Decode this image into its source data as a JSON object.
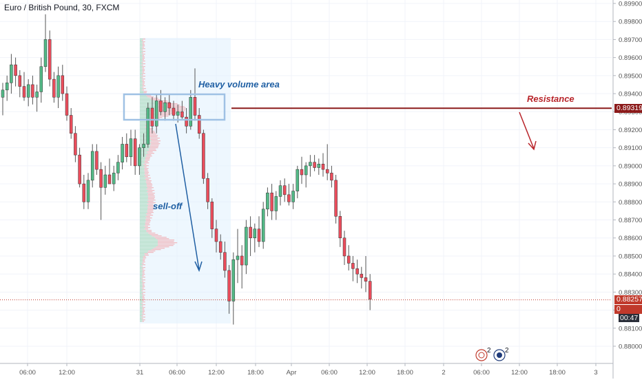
{
  "symbol_title": "Euro / British Pound, 30, FXCM",
  "colors": {
    "up": "#53b987",
    "down": "#eb4d5c",
    "wick": "#555555",
    "resistance": "#8b1a1a",
    "annotation_blue": "#1f5fa3",
    "annotation_red": "#b8242a",
    "box_stroke": "#9fc1e4",
    "range_fill": "#e3f2fd",
    "price_line": "#c0392b",
    "grid": "#f0f3fa",
    "axis_text": "#555555"
  },
  "price_tags": {
    "resistance": "0.89319",
    "last": "0.88257",
    "countdown_prefix": "0",
    "countdown": "00:47"
  },
  "annotations": {
    "heavy_volume": "Heavy volume area",
    "resistance": "Resistance",
    "selloff": "sell-off"
  },
  "bottom_icons": {
    "badge_1": "2",
    "badge_2": "2"
  },
  "chart_data": {
    "type": "candlestick",
    "ylim": [
      0.8792,
      0.8992
    ],
    "y_ticks": [
      "0.88000",
      "0.88100",
      "0.88200",
      "0.88300",
      "0.88400",
      "0.88500",
      "0.88600",
      "0.88700",
      "0.88800",
      "0.88900",
      "0.89000",
      "0.89100",
      "0.89200",
      "0.89300",
      "0.89400",
      "0.89500",
      "0.89600",
      "0.89700",
      "0.89800",
      "0.89900"
    ],
    "x_ticks": [
      "06:00",
      "12:00",
      "31",
      "06:00",
      "12:00",
      "18:00",
      "Apr",
      "06:00",
      "12:00",
      "18:00",
      "2",
      "06:00",
      "12:00",
      "18:00",
      "3"
    ],
    "resistance_level": 0.89319,
    "last_price": 0.88257,
    "candles": [
      {
        "o": 0.8938,
        "h": 0.8946,
        "l": 0.8928,
        "c": 0.8942
      },
      {
        "o": 0.8942,
        "h": 0.895,
        "l": 0.8936,
        "c": 0.8946
      },
      {
        "o": 0.8946,
        "h": 0.8962,
        "l": 0.894,
        "c": 0.8956
      },
      {
        "o": 0.8956,
        "h": 0.896,
        "l": 0.8944,
        "c": 0.895
      },
      {
        "o": 0.895,
        "h": 0.8953,
        "l": 0.8938,
        "c": 0.8944
      },
      {
        "o": 0.8944,
        "h": 0.8952,
        "l": 0.8936,
        "c": 0.8938
      },
      {
        "o": 0.8938,
        "h": 0.8948,
        "l": 0.8933,
        "c": 0.8945
      },
      {
        "o": 0.8945,
        "h": 0.895,
        "l": 0.8934,
        "c": 0.8938
      },
      {
        "o": 0.8938,
        "h": 0.8945,
        "l": 0.893,
        "c": 0.8941
      },
      {
        "o": 0.8941,
        "h": 0.896,
        "l": 0.8935,
        "c": 0.8955
      },
      {
        "o": 0.8955,
        "h": 0.8984,
        "l": 0.8952,
        "c": 0.897
      },
      {
        "o": 0.897,
        "h": 0.8975,
        "l": 0.8944,
        "c": 0.8948
      },
      {
        "o": 0.8948,
        "h": 0.8952,
        "l": 0.8935,
        "c": 0.8938
      },
      {
        "o": 0.8938,
        "h": 0.8955,
        "l": 0.8932,
        "c": 0.895
      },
      {
        "o": 0.895,
        "h": 0.8956,
        "l": 0.8936,
        "c": 0.894
      },
      {
        "o": 0.894,
        "h": 0.8944,
        "l": 0.8925,
        "c": 0.8928
      },
      {
        "o": 0.8928,
        "h": 0.8932,
        "l": 0.8915,
        "c": 0.8918
      },
      {
        "o": 0.8918,
        "h": 0.8922,
        "l": 0.8902,
        "c": 0.8906
      },
      {
        "o": 0.8906,
        "h": 0.891,
        "l": 0.8888,
        "c": 0.889
      },
      {
        "o": 0.889,
        "h": 0.8895,
        "l": 0.8876,
        "c": 0.888
      },
      {
        "o": 0.888,
        "h": 0.8896,
        "l": 0.8876,
        "c": 0.8892
      },
      {
        "o": 0.8892,
        "h": 0.8912,
        "l": 0.8888,
        "c": 0.8908
      },
      {
        "o": 0.8908,
        "h": 0.8912,
        "l": 0.8895,
        "c": 0.8898
      },
      {
        "o": 0.8898,
        "h": 0.8902,
        "l": 0.887,
        "c": 0.8888
      },
      {
        "o": 0.8888,
        "h": 0.89,
        "l": 0.8884,
        "c": 0.8895
      },
      {
        "o": 0.8895,
        "h": 0.8904,
        "l": 0.889,
        "c": 0.889
      },
      {
        "o": 0.889,
        "h": 0.89,
        "l": 0.8886,
        "c": 0.8896
      },
      {
        "o": 0.8896,
        "h": 0.8906,
        "l": 0.8892,
        "c": 0.8902
      },
      {
        "o": 0.8902,
        "h": 0.8916,
        "l": 0.8898,
        "c": 0.8912
      },
      {
        "o": 0.8912,
        "h": 0.8918,
        "l": 0.8902,
        "c": 0.8905
      },
      {
        "o": 0.8905,
        "h": 0.892,
        "l": 0.89,
        "c": 0.8915
      },
      {
        "o": 0.8915,
        "h": 0.892,
        "l": 0.8895,
        "c": 0.89
      },
      {
        "o": 0.89,
        "h": 0.8912,
        "l": 0.8895,
        "c": 0.891
      },
      {
        "o": 0.891,
        "h": 0.8918,
        "l": 0.8905,
        "c": 0.8912
      },
      {
        "o": 0.8912,
        "h": 0.8935,
        "l": 0.891,
        "c": 0.8932
      },
      {
        "o": 0.8932,
        "h": 0.8938,
        "l": 0.8918,
        "c": 0.8922
      },
      {
        "o": 0.8922,
        "h": 0.894,
        "l": 0.8918,
        "c": 0.8936
      },
      {
        "o": 0.8936,
        "h": 0.8942,
        "l": 0.8928,
        "c": 0.893
      },
      {
        "o": 0.893,
        "h": 0.8938,
        "l": 0.8925,
        "c": 0.8935
      },
      {
        "o": 0.8935,
        "h": 0.894,
        "l": 0.8928,
        "c": 0.8932
      },
      {
        "o": 0.8932,
        "h": 0.8936,
        "l": 0.8925,
        "c": 0.8928
      },
      {
        "o": 0.8928,
        "h": 0.8934,
        "l": 0.8924,
        "c": 0.893
      },
      {
        "o": 0.893,
        "h": 0.8936,
        "l": 0.8926,
        "c": 0.8927
      },
      {
        "o": 0.8927,
        "h": 0.8932,
        "l": 0.8918,
        "c": 0.8922
      },
      {
        "o": 0.8922,
        "h": 0.8942,
        "l": 0.892,
        "c": 0.8938
      },
      {
        "o": 0.8938,
        "h": 0.8954,
        "l": 0.8925,
        "c": 0.8928
      },
      {
        "o": 0.8928,
        "h": 0.8932,
        "l": 0.8915,
        "c": 0.8918
      },
      {
        "o": 0.8918,
        "h": 0.892,
        "l": 0.889,
        "c": 0.8893
      },
      {
        "o": 0.8893,
        "h": 0.8896,
        "l": 0.8876,
        "c": 0.888
      },
      {
        "o": 0.888,
        "h": 0.8882,
        "l": 0.886,
        "c": 0.8865
      },
      {
        "o": 0.8865,
        "h": 0.887,
        "l": 0.8852,
        "c": 0.8858
      },
      {
        "o": 0.8858,
        "h": 0.8862,
        "l": 0.8848,
        "c": 0.8852
      },
      {
        "o": 0.8852,
        "h": 0.8858,
        "l": 0.8838,
        "c": 0.8842
      },
      {
        "o": 0.8842,
        "h": 0.8845,
        "l": 0.8818,
        "c": 0.8825
      },
      {
        "o": 0.8825,
        "h": 0.8852,
        "l": 0.8812,
        "c": 0.8848
      },
      {
        "o": 0.8848,
        "h": 0.8865,
        "l": 0.8835,
        "c": 0.885
      },
      {
        "o": 0.885,
        "h": 0.8856,
        "l": 0.8832,
        "c": 0.8845
      },
      {
        "o": 0.8845,
        "h": 0.887,
        "l": 0.884,
        "c": 0.8866
      },
      {
        "o": 0.8866,
        "h": 0.8872,
        "l": 0.885,
        "c": 0.886
      },
      {
        "o": 0.886,
        "h": 0.8868,
        "l": 0.8852,
        "c": 0.8865
      },
      {
        "o": 0.8865,
        "h": 0.8872,
        "l": 0.8855,
        "c": 0.8858
      },
      {
        "o": 0.8858,
        "h": 0.888,
        "l": 0.8854,
        "c": 0.8876
      },
      {
        "o": 0.8876,
        "h": 0.8888,
        "l": 0.8872,
        "c": 0.8885
      },
      {
        "o": 0.8885,
        "h": 0.889,
        "l": 0.887,
        "c": 0.8875
      },
      {
        "o": 0.8875,
        "h": 0.8886,
        "l": 0.887,
        "c": 0.8883
      },
      {
        "o": 0.8883,
        "h": 0.8892,
        "l": 0.8878,
        "c": 0.8889
      },
      {
        "o": 0.8889,
        "h": 0.8893,
        "l": 0.888,
        "c": 0.8884
      },
      {
        "o": 0.8884,
        "h": 0.889,
        "l": 0.8878,
        "c": 0.888
      },
      {
        "o": 0.888,
        "h": 0.889,
        "l": 0.8876,
        "c": 0.8886
      },
      {
        "o": 0.8886,
        "h": 0.89,
        "l": 0.8882,
        "c": 0.8898
      },
      {
        "o": 0.8898,
        "h": 0.8905,
        "l": 0.889,
        "c": 0.8895
      },
      {
        "o": 0.8895,
        "h": 0.8902,
        "l": 0.8888,
        "c": 0.89
      },
      {
        "o": 0.89,
        "h": 0.8906,
        "l": 0.8894,
        "c": 0.8902
      },
      {
        "o": 0.8902,
        "h": 0.8906,
        "l": 0.8897,
        "c": 0.8899
      },
      {
        "o": 0.8899,
        "h": 0.8904,
        "l": 0.8895,
        "c": 0.8901
      },
      {
        "o": 0.8901,
        "h": 0.8907,
        "l": 0.8894,
        "c": 0.8898
      },
      {
        "o": 0.8898,
        "h": 0.8912,
        "l": 0.8892,
        "c": 0.8896
      },
      {
        "o": 0.8896,
        "h": 0.89,
        "l": 0.8888,
        "c": 0.8892
      },
      {
        "o": 0.8892,
        "h": 0.8895,
        "l": 0.8868,
        "c": 0.8872
      },
      {
        "o": 0.8872,
        "h": 0.8875,
        "l": 0.8855,
        "c": 0.886
      },
      {
        "o": 0.886,
        "h": 0.8864,
        "l": 0.8845,
        "c": 0.885
      },
      {
        "o": 0.885,
        "h": 0.8856,
        "l": 0.8842,
        "c": 0.8846
      },
      {
        "o": 0.8846,
        "h": 0.885,
        "l": 0.8836,
        "c": 0.8843
      },
      {
        "o": 0.8843,
        "h": 0.8848,
        "l": 0.8835,
        "c": 0.884
      },
      {
        "o": 0.884,
        "h": 0.8844,
        "l": 0.8832,
        "c": 0.8838
      },
      {
        "o": 0.8838,
        "h": 0.885,
        "l": 0.883,
        "c": 0.8836
      },
      {
        "o": 0.8836,
        "h": 0.884,
        "l": 0.882,
        "c": 0.8826
      }
    ]
  }
}
